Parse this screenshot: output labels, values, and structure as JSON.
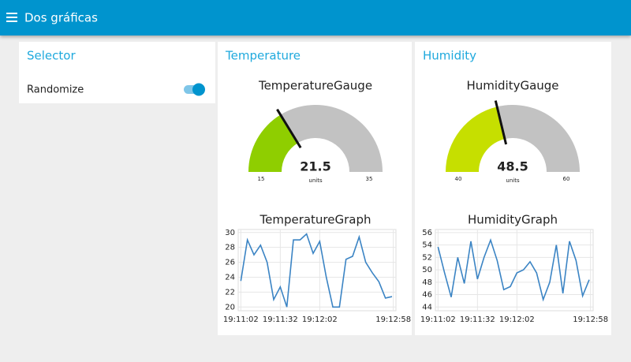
{
  "header": {
    "title": "Dos gráficas"
  },
  "selector": {
    "title": "Selector",
    "switch": {
      "label": "Randomize",
      "on": true
    }
  },
  "groups": [
    {
      "title": "Temperature",
      "gauge": {
        "title": "TemperatureGauge",
        "value": 21.5,
        "units": "units",
        "min": 15,
        "max": 35,
        "color": "#8fce00"
      },
      "graph": {
        "type": "line",
        "title": "TemperatureGraph",
        "color": "#3b84c4",
        "x": [
          69062,
          69067,
          69072,
          69077,
          69082,
          69087,
          69092,
          69097,
          69102,
          69107,
          69112,
          69117,
          69122,
          69127,
          69132,
          69137,
          69142,
          69147,
          69152,
          69157,
          69162,
          69167,
          69172,
          69177
        ],
        "values": [
          23.5,
          29,
          27,
          28.3,
          26,
          21,
          22.7,
          20,
          29,
          29,
          29.8,
          27.2,
          28.8,
          24,
          20,
          20,
          26.4,
          26.8,
          29.4,
          26,
          24.6,
          23.4,
          21.2,
          21.4
        ],
        "xlim": [
          69060,
          69180
        ],
        "xticks": [
          {
            "value": 69062,
            "label": "19:11:02"
          },
          {
            "value": 69092,
            "label": "19:11:32"
          },
          {
            "value": 69122,
            "label": "19:12:02"
          },
          {
            "value": 69178,
            "label": "19:12:58"
          }
        ],
        "ylim": [
          19.5,
          30.4
        ],
        "yticks": [
          20,
          22,
          24,
          26,
          28,
          30
        ],
        "grid": true
      }
    },
    {
      "title": "Humidity",
      "gauge": {
        "title": "HumidityGauge",
        "value": 48.5,
        "units": "units",
        "min": 40,
        "max": 60,
        "color": "#c6df00"
      },
      "graph": {
        "type": "line",
        "title": "HumidityGraph",
        "color": "#3b84c4",
        "x": [
          69062,
          69067,
          69072,
          69077,
          69082,
          69087,
          69092,
          69097,
          69102,
          69107,
          69112,
          69117,
          69122,
          69127,
          69132,
          69137,
          69142,
          69147,
          69152,
          69157,
          69162,
          69167,
          69172,
          69177
        ],
        "values": [
          53.7,
          49.5,
          45.6,
          52,
          47.8,
          54.6,
          48.5,
          52,
          54.8,
          51.5,
          46.8,
          47.3,
          49.5,
          50,
          51.3,
          49.5,
          45.2,
          48,
          54,
          46.2,
          54.6,
          51.5,
          45.8,
          48.4
        ],
        "xlim": [
          69060,
          69180
        ],
        "xticks": [
          {
            "value": 69062,
            "label": "19:11:02"
          },
          {
            "value": 69092,
            "label": "19:11:32"
          },
          {
            "value": 69122,
            "label": "19:12:02"
          },
          {
            "value": 69178,
            "label": "19:12:58"
          }
        ],
        "ylim": [
          43.4,
          56.5
        ],
        "yticks": [
          44,
          46,
          48,
          50,
          52,
          54,
          56
        ],
        "grid": true
      }
    }
  ]
}
